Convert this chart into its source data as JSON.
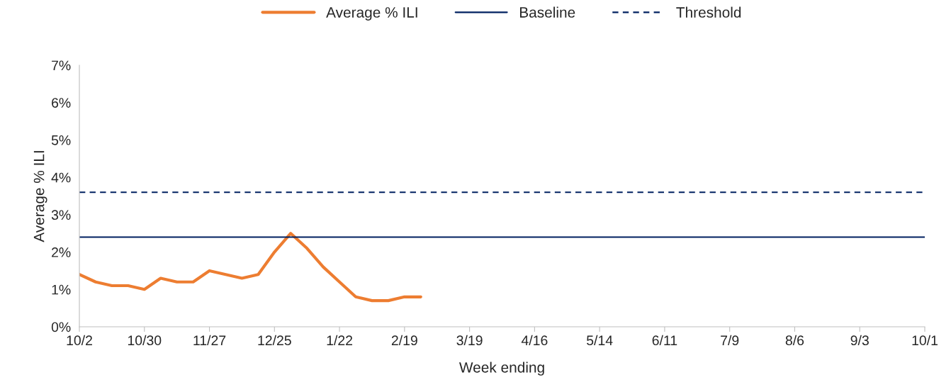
{
  "chart_data": {
    "type": "line",
    "xlabel": "Week ending",
    "ylabel": "Average % ILI",
    "categories": [
      "10/2",
      null,
      null,
      null,
      "10/30",
      null,
      null,
      null,
      "11/27",
      null,
      null,
      null,
      "12/25",
      null,
      null,
      null,
      "1/22",
      null,
      null,
      null,
      "2/19",
      null,
      null,
      null,
      "3/19",
      null,
      null,
      null,
      "4/16",
      null,
      null,
      null,
      "5/14",
      null,
      null,
      null,
      "6/11",
      null,
      null,
      null,
      "7/9",
      null,
      null,
      null,
      "8/6",
      null,
      null,
      null,
      "9/3",
      null,
      null,
      null,
      "10/1"
    ],
    "series": [
      {
        "name": "Average % ILI",
        "color": "#ed7d31",
        "line_style": "solid",
        "values": [
          1.4,
          1.2,
          1.1,
          1.1,
          1.0,
          1.3,
          1.2,
          1.2,
          1.5,
          1.4,
          1.3,
          1.4,
          2.0,
          2.5,
          2.1,
          1.6,
          1.2,
          0.8,
          0.7,
          0.7,
          0.8,
          0.8,
          null,
          null,
          null,
          null,
          null,
          null,
          null,
          null,
          null,
          null,
          null,
          null,
          null,
          null,
          null,
          null,
          null,
          null,
          null,
          null,
          null,
          null,
          null,
          null,
          null,
          null,
          null,
          null,
          null,
          null,
          null
        ]
      },
      {
        "name": "Baseline",
        "color": "#002060",
        "line_style": "solid",
        "values": [
          2.4,
          2.4,
          2.4,
          2.4,
          2.4,
          2.4,
          2.4,
          2.4,
          2.4,
          2.4,
          2.4,
          2.4,
          2.4,
          2.4,
          2.4,
          2.4,
          2.4,
          2.4,
          2.4,
          2.4,
          2.4,
          2.4,
          2.4,
          2.4,
          2.4,
          2.4,
          2.4,
          2.4,
          2.4,
          2.4,
          2.4,
          2.4,
          2.4,
          2.4,
          2.4,
          2.4,
          2.4,
          2.4,
          2.4,
          2.4,
          2.4,
          2.4,
          2.4,
          2.4,
          2.4,
          2.4,
          2.4,
          2.4,
          2.4,
          2.4,
          2.4,
          2.4,
          2.4
        ]
      },
      {
        "name": "Threshold",
        "color": "#002060",
        "line_style": "dashed",
        "values": [
          3.6,
          3.6,
          3.6,
          3.6,
          3.6,
          3.6,
          3.6,
          3.6,
          3.6,
          3.6,
          3.6,
          3.6,
          3.6,
          3.6,
          3.6,
          3.6,
          3.6,
          3.6,
          3.6,
          3.6,
          3.6,
          3.6,
          3.6,
          3.6,
          3.6,
          3.6,
          3.6,
          3.6,
          3.6,
          3.6,
          3.6,
          3.6,
          3.6,
          3.6,
          3.6,
          3.6,
          3.6,
          3.6,
          3.6,
          3.6,
          3.6,
          3.6,
          3.6,
          3.6,
          3.6,
          3.6,
          3.6,
          3.6,
          3.6,
          3.6,
          3.6,
          3.6,
          3.6
        ]
      }
    ],
    "ylim": [
      0,
      7
    ],
    "yticks": [
      {
        "value": 0,
        "label": "0%"
      },
      {
        "value": 1,
        "label": "1%"
      },
      {
        "value": 2,
        "label": "2%"
      },
      {
        "value": 3,
        "label": "3%"
      },
      {
        "value": 4,
        "label": "4%"
      },
      {
        "value": 5,
        "label": "5%"
      },
      {
        "value": 6,
        "label": "6%"
      },
      {
        "value": 7,
        "label": "7%"
      }
    ],
    "grid": false,
    "legend": "top",
    "marker": "none"
  }
}
